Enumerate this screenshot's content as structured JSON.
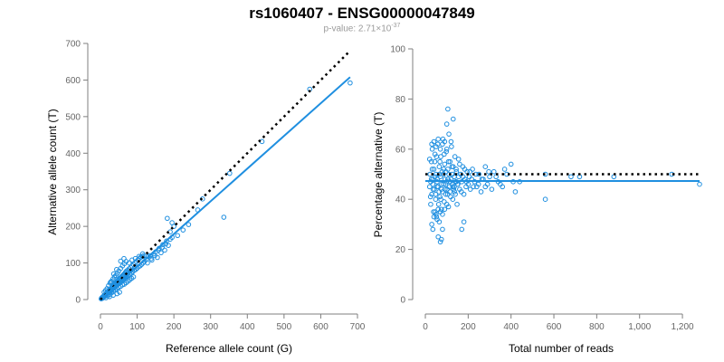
{
  "header": {
    "title": "rs1060407 - ENSG00000047849",
    "pvalue_prefix": "p-value: 2.71×10",
    "pvalue_exponent": "-37"
  },
  "colors": {
    "points": "#1f8fe0",
    "fit": "#1f8fe0",
    "reference": "#000000",
    "axis": "#7f7f7f"
  },
  "chart_data": [
    {
      "type": "scatter",
      "xlabel": "Reference allele count (G)",
      "ylabel": "Alternative allele count (T)",
      "xlim": [
        0,
        700
      ],
      "ylim": [
        0,
        700
      ],
      "xticks": [
        0,
        100,
        200,
        300,
        400,
        500,
        600,
        700
      ],
      "yticks": [
        0,
        100,
        200,
        300,
        400,
        500,
        600,
        700
      ],
      "xtick_labels": [
        "0",
        "100",
        "200",
        "300",
        "400",
        "500",
        "600",
        "700"
      ],
      "ytick_labels": [
        "0",
        "100",
        "200",
        "300",
        "400",
        "500",
        "600",
        "700"
      ],
      "reference_line": {
        "style": "dotted",
        "from": [
          0,
          0
        ],
        "to": [
          680,
          680
        ]
      },
      "fit_line": {
        "from": [
          5,
          5
        ],
        "to": [
          680,
          608
        ]
      },
      "points": [
        [
          2,
          2
        ],
        [
          3,
          4
        ],
        [
          4,
          3
        ],
        [
          5,
          6
        ],
        [
          6,
          4
        ],
        [
          7,
          8
        ],
        [
          8,
          6
        ],
        [
          9,
          9
        ],
        [
          10,
          8
        ],
        [
          11,
          12
        ],
        [
          12,
          9
        ],
        [
          13,
          14
        ],
        [
          14,
          11
        ],
        [
          15,
          16
        ],
        [
          16,
          13
        ],
        [
          17,
          18
        ],
        [
          18,
          15
        ],
        [
          19,
          21
        ],
        [
          20,
          17
        ],
        [
          21,
          22
        ],
        [
          22,
          19
        ],
        [
          23,
          25
        ],
        [
          24,
          20
        ],
        [
          25,
          27
        ],
        [
          26,
          22
        ],
        [
          27,
          29
        ],
        [
          28,
          24
        ],
        [
          29,
          31
        ],
        [
          30,
          26
        ],
        [
          31,
          33
        ],
        [
          32,
          28
        ],
        [
          33,
          35
        ],
        [
          34,
          30
        ],
        [
          35,
          38
        ],
        [
          36,
          31
        ],
        [
          37,
          40
        ],
        [
          38,
          33
        ],
        [
          39,
          42
        ],
        [
          40,
          35
        ],
        [
          41,
          44
        ],
        [
          42,
          37
        ],
        [
          43,
          46
        ],
        [
          44,
          39
        ],
        [
          45,
          49
        ],
        [
          46,
          40
        ],
        [
          47,
          51
        ],
        [
          48,
          42
        ],
        [
          49,
          53
        ],
        [
          50,
          44
        ],
        [
          51,
          56
        ],
        [
          52,
          46
        ],
        [
          53,
          58
        ],
        [
          54,
          47
        ],
        [
          55,
          60
        ],
        [
          56,
          49
        ],
        [
          57,
          62
        ],
        [
          58,
          51
        ],
        [
          59,
          64
        ],
        [
          60,
          53
        ],
        [
          61,
          66
        ],
        [
          62,
          55
        ],
        [
          63,
          68
        ],
        [
          64,
          56
        ],
        [
          65,
          70
        ],
        [
          66,
          58
        ],
        [
          67,
          73
        ],
        [
          68,
          60
        ],
        [
          69,
          75
        ],
        [
          70,
          62
        ],
        [
          71,
          78
        ],
        [
          72,
          63
        ],
        [
          74,
          80
        ],
        [
          76,
          66
        ],
        [
          78,
          84
        ],
        [
          80,
          70
        ],
        [
          82,
          88
        ],
        [
          84,
          72
        ],
        [
          86,
          92
        ],
        [
          88,
          76
        ],
        [
          90,
          96
        ],
        [
          92,
          80
        ],
        [
          94,
          100
        ],
        [
          96,
          82
        ],
        [
          98,
          104
        ],
        [
          100,
          86
        ],
        [
          102,
          108
        ],
        [
          104,
          90
        ],
        [
          106,
          112
        ],
        [
          108,
          92
        ],
        [
          110,
          116
        ],
        [
          112,
          96
        ],
        [
          114,
          118
        ],
        [
          116,
          100
        ],
        [
          118,
          120
        ],
        [
          120,
          104
        ],
        [
          10,
          20
        ],
        [
          14,
          25
        ],
        [
          18,
          30
        ],
        [
          22,
          38
        ],
        [
          26,
          45
        ],
        [
          30,
          50
        ],
        [
          34,
          56
        ],
        [
          38,
          62
        ],
        [
          42,
          66
        ],
        [
          46,
          72
        ],
        [
          50,
          78
        ],
        [
          55,
          85
        ],
        [
          60,
          92
        ],
        [
          65,
          98
        ],
        [
          70,
          104
        ],
        [
          20,
          10
        ],
        [
          25,
          14
        ],
        [
          30,
          18
        ],
        [
          35,
          22
        ],
        [
          40,
          26
        ],
        [
          45,
          30
        ],
        [
          50,
          34
        ],
        [
          55,
          36
        ],
        [
          60,
          40
        ],
        [
          65,
          42
        ],
        [
          70,
          46
        ],
        [
          75,
          50
        ],
        [
          80,
          54
        ],
        [
          85,
          58
        ],
        [
          90,
          62
        ],
        [
          15,
          5
        ],
        [
          25,
          8
        ],
        [
          35,
          12
        ],
        [
          45,
          16
        ],
        [
          52,
          20
        ],
        [
          28,
          48
        ],
        [
          36,
          70
        ],
        [
          44,
          82
        ],
        [
          55,
          105
        ],
        [
          64,
          112
        ],
        [
          78,
          100
        ],
        [
          86,
          108
        ],
        [
          95,
          112
        ],
        [
          105,
          118
        ],
        [
          115,
          125
        ],
        [
          125,
          110
        ],
        [
          130,
          118
        ],
        [
          135,
          120
        ],
        [
          140,
          108
        ],
        [
          145,
          125
        ],
        [
          150,
          130
        ],
        [
          155,
          115
        ],
        [
          160,
          140
        ],
        [
          165,
          128
        ],
        [
          170,
          150
        ],
        [
          175,
          135
        ],
        [
          180,
          160
        ],
        [
          185,
          148
        ],
        [
          190,
          165
        ],
        [
          195,
          170
        ],
        [
          128,
          100
        ],
        [
          138,
          112
        ],
        [
          148,
          120
        ],
        [
          158,
          135
        ],
        [
          168,
          142
        ],
        [
          178,
          152
        ],
        [
          190,
          185
        ],
        [
          195,
          210
        ],
        [
          200,
          200
        ],
        [
          210,
          175
        ],
        [
          225,
          190
        ],
        [
          240,
          205
        ],
        [
          265,
          245
        ],
        [
          278,
          275
        ],
        [
          336,
          225
        ],
        [
          352,
          345
        ],
        [
          440,
          432
        ],
        [
          570,
          575
        ],
        [
          680,
          592
        ],
        [
          182,
          222
        ]
      ]
    },
    {
      "type": "scatter",
      "xlabel": "Total number of reads",
      "ylabel": "Percentage alternative (T)",
      "xlim": [
        0,
        1280
      ],
      "ylim": [
        0,
        100
      ],
      "xticks": [
        0,
        200,
        400,
        600,
        800,
        1000,
        1200
      ],
      "yticks": [
        0,
        20,
        40,
        60,
        80,
        100
      ],
      "xtick_labels": [
        "0",
        "200",
        "400",
        "600",
        "800",
        "1,000",
        "1,200"
      ],
      "ytick_labels": [
        "0",
        "20",
        "40",
        "60",
        "80",
        "100"
      ],
      "reference_line": {
        "style": "dotted",
        "y": 50
      },
      "fit_line": {
        "y": 47.3
      },
      "points": [
        [
          20,
          45
        ],
        [
          22,
          50
        ],
        [
          25,
          38
        ],
        [
          28,
          55
        ],
        [
          30,
          42
        ],
        [
          32,
          60
        ],
        [
          35,
          48
        ],
        [
          38,
          35
        ],
        [
          40,
          52
        ],
        [
          42,
          44
        ],
        [
          45,
          58
        ],
        [
          48,
          40
        ],
        [
          50,
          50
        ],
        [
          52,
          33
        ],
        [
          55,
          47
        ],
        [
          58,
          62
        ],
        [
          60,
          45
        ],
        [
          62,
          38
        ],
        [
          65,
          53
        ],
        [
          68,
          41
        ],
        [
          70,
          49
        ],
        [
          72,
          57
        ],
        [
          75,
          36
        ],
        [
          78,
          51
        ],
        [
          80,
          43
        ],
        [
          82,
          64
        ],
        [
          85,
          46
        ],
        [
          88,
          39
        ],
        [
          90,
          54
        ],
        [
          92,
          48
        ],
        [
          95,
          42
        ],
        [
          98,
          59
        ],
        [
          100,
          47
        ],
        [
          102,
          44
        ],
        [
          105,
          52
        ],
        [
          108,
          37
        ],
        [
          110,
          50
        ],
        [
          112,
          45
        ],
        [
          115,
          55
        ],
        [
          118,
          41
        ],
        [
          120,
          48
        ],
        [
          122,
          61
        ],
        [
          125,
          46
        ],
        [
          128,
          40
        ],
        [
          130,
          53
        ],
        [
          132,
          44
        ],
        [
          135,
          49
        ],
        [
          138,
          57
        ],
        [
          140,
          42
        ],
        [
          142,
          47
        ],
        [
          145,
          51
        ],
        [
          148,
          38
        ],
        [
          150,
          46
        ],
        [
          155,
          56
        ],
        [
          160,
          44
        ],
        [
          165,
          50
        ],
        [
          170,
          47
        ],
        [
          175,
          53
        ],
        [
          180,
          42
        ],
        [
          185,
          48
        ],
        [
          190,
          45
        ],
        [
          195,
          51
        ],
        [
          200,
          46
        ],
        [
          205,
          49
        ],
        [
          210,
          44
        ],
        [
          220,
          52
        ],
        [
          230,
          47
        ],
        [
          240,
          45
        ],
        [
          250,
          50
        ],
        [
          260,
          43
        ],
        [
          270,
          48
        ],
        [
          280,
          53
        ],
        [
          290,
          46
        ],
        [
          300,
          49
        ],
        [
          310,
          44
        ],
        [
          320,
          51
        ],
        [
          340,
          47
        ],
        [
          360,
          45
        ],
        [
          380,
          50
        ],
        [
          400,
          54
        ],
        [
          420,
          43
        ],
        [
          440,
          47
        ],
        [
          30,
          30
        ],
        [
          35,
          28
        ],
        [
          40,
          33
        ],
        [
          45,
          35
        ],
        [
          50,
          34
        ],
        [
          55,
          32
        ],
        [
          60,
          36
        ],
        [
          65,
          31
        ],
        [
          70,
          35
        ],
        [
          80,
          34
        ],
        [
          90,
          36
        ],
        [
          100,
          38
        ],
        [
          30,
          62
        ],
        [
          40,
          63
        ],
        [
          50,
          61
        ],
        [
          60,
          64
        ],
        [
          70,
          60
        ],
        [
          80,
          62
        ],
        [
          90,
          63
        ],
        [
          100,
          60
        ],
        [
          110,
          66
        ],
        [
          120,
          63
        ],
        [
          60,
          25
        ],
        [
          70,
          23
        ],
        [
          75,
          24
        ],
        [
          80,
          28
        ],
        [
          100,
          70
        ],
        [
          105,
          76
        ],
        [
          130,
          72
        ],
        [
          170,
          28
        ],
        [
          180,
          31
        ],
        [
          25,
          47
        ],
        [
          35,
          46
        ],
        [
          45,
          49
        ],
        [
          55,
          45
        ],
        [
          65,
          50
        ],
        [
          75,
          44
        ],
        [
          85,
          52
        ],
        [
          95,
          46
        ],
        [
          105,
          48
        ],
        [
          115,
          43
        ],
        [
          125,
          50
        ],
        [
          135,
          45
        ],
        [
          145,
          47
        ],
        [
          155,
          49
        ],
        [
          20,
          56
        ],
        [
          24,
          41
        ],
        [
          28,
          48
        ],
        [
          32,
          52
        ],
        [
          36,
          44
        ],
        [
          44,
          55
        ],
        [
          48,
          42
        ],
        [
          52,
          57
        ],
        [
          56,
          48
        ],
        [
          64,
          43
        ],
        [
          68,
          55
        ],
        [
          72,
          40
        ],
        [
          76,
          46
        ],
        [
          84,
          50
        ],
        [
          88,
          58
        ],
        [
          92,
          44
        ],
        [
          96,
          51
        ],
        [
          104,
          42
        ],
        [
          108,
          55
        ],
        [
          116,
          47
        ],
        [
          124,
          53
        ],
        [
          128,
          45
        ],
        [
          136,
          43
        ],
        [
          144,
          52
        ],
        [
          152,
          46
        ],
        [
          160,
          54
        ],
        [
          168,
          43
        ],
        [
          176,
          49
        ],
        [
          184,
          52
        ],
        [
          192,
          47
        ],
        [
          208,
          51
        ],
        [
          216,
          48
        ],
        [
          224,
          45
        ],
        [
          236,
          50
        ],
        [
          248,
          46
        ],
        [
          264,
          48
        ],
        [
          280,
          45
        ],
        [
          296,
          51
        ],
        [
          330,
          49
        ],
        [
          350,
          46
        ],
        [
          370,
          52
        ],
        [
          410,
          47
        ],
        [
          560,
          40
        ],
        [
          560,
          50
        ],
        [
          680,
          49
        ],
        [
          720,
          49
        ],
        [
          880,
          49
        ],
        [
          1150,
          50
        ],
        [
          1280,
          46
        ]
      ]
    }
  ]
}
